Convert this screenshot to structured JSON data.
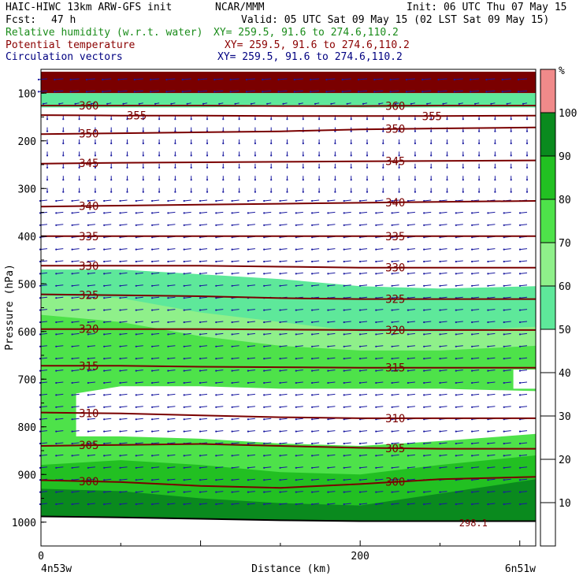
{
  "header": {
    "title_left": "HAIC-HIWC 13km ARW-GFS init",
    "org": "NCAR/MMM",
    "init": "Init: 06 UTC Thu 07 May 15",
    "fcst_label": "Fcst:",
    "fcst_value": "47 h",
    "valid": "Valid: 05 UTC Sat 09 May 15 (02 LST Sat 09 May 15)",
    "fields": [
      {
        "name": "Relative humidity (w.r.t. water)",
        "xy": "XY= 259.5, 91.6 to 274.6,110.2",
        "color": "#1a8c1a"
      },
      {
        "name": "Potential temperature",
        "xy": "XY= 259.5, 91.6 to 274.6,110.2",
        "color": "#8b0000"
      },
      {
        "name": "Circulation vectors",
        "xy": "XY= 259.5, 91.6 to 274.6,110.2",
        "color": "#000080"
      }
    ]
  },
  "chart_data": {
    "type": "heatmap",
    "ylabel": "Pressure (hPa)",
    "xlabel": "Distance (km)",
    "x_ticks": [
      0,
      200
    ],
    "x_endpoints": [
      "4n53w",
      "6n51w"
    ],
    "xlim": [
      0,
      310
    ],
    "ylim": [
      1050,
      50
    ],
    "y_ticks": [
      100,
      200,
      300,
      400,
      500,
      600,
      700,
      800,
      900,
      1000
    ],
    "colorbar": {
      "unit": "%",
      "ticks": [
        10,
        20,
        30,
        40,
        50,
        60,
        70,
        80,
        90,
        100
      ],
      "bins": [
        {
          "from": 0,
          "to": 50,
          "color": "#ffffff"
        },
        {
          "from": 50,
          "to": 60,
          "color": "#5ee89a"
        },
        {
          "from": 60,
          "to": 70,
          "color": "#8ff08a"
        },
        {
          "from": 70,
          "to": 80,
          "color": "#4ee24a"
        },
        {
          "from": 80,
          "to": 90,
          "color": "#22c022"
        },
        {
          "from": 90,
          "to": 100,
          "color": "#0a8a1e"
        },
        {
          "from": 100,
          "to": 110,
          "color": "#f08a8a"
        }
      ]
    },
    "rh_bands": [
      {
        "color": "#7a0000",
        "top": [
          55,
          55,
          55,
          55,
          55,
          55,
          55
        ],
        "bottom": [
          100,
          100,
          100,
          100,
          100,
          100,
          100
        ]
      },
      {
        "color": "#5ee89a",
        "top": [
          100,
          100,
          100,
          100,
          100,
          100,
          100
        ],
        "bottom": [
          130,
          130,
          130,
          128,
          130,
          130,
          130
        ]
      },
      {
        "color": "#5ee89a",
        "top": [
          470,
          470,
          480,
          490,
          505,
          510,
          505
        ],
        "bottom": [
          1050,
          1050,
          1050,
          1050,
          1050,
          1050,
          1050
        ]
      },
      {
        "color": "#8ff08a",
        "top": [
          525,
          530,
          560,
          580,
          600,
          600,
          590
        ],
        "bottom": [
          1050,
          1050,
          1050,
          1050,
          1050,
          1050,
          1050
        ]
      },
      {
        "color": "#4ee24a",
        "top": [
          565,
          580,
          610,
          630,
          640,
          640,
          630
        ],
        "bottom": [
          1050,
          1050,
          1050,
          1050,
          1050,
          1050,
          1050
        ]
      },
      {
        "color": "#22c022",
        "top": [
          880,
          870,
          880,
          895,
          900,
          880,
          860
        ],
        "bottom": [
          1050,
          1050,
          1050,
          1050,
          1050,
          1050,
          1050
        ]
      },
      {
        "color": "#0a8a1e",
        "top": [
          930,
          935,
          950,
          960,
          965,
          940,
          910
        ],
        "bottom": [
          1050,
          1050,
          1050,
          1050,
          1050,
          1050,
          1050
        ]
      }
    ],
    "dry_pockets": [
      {
        "color": "#ffffff",
        "top": [
          730,
          715,
          715,
          720,
          720,
          720,
          725
        ],
        "bottom": [
          820,
          820,
          825,
          835,
          840,
          830,
          815
        ],
        "x_from": 22,
        "x_to": 310
      },
      {
        "color": "#ffffff",
        "top": [
          680,
          680
        ],
        "bottom": [
          720,
          720
        ],
        "x_from": 296,
        "x_to": 310
      }
    ],
    "x_positions": [
      0,
      50,
      100,
      150,
      200,
      250,
      310
    ],
    "theta_contours": [
      {
        "value": "360",
        "p": [
          126,
          126,
          126,
          127,
          127,
          126,
          126
        ],
        "label_x": [
          30,
          222
        ]
      },
      {
        "value": "355",
        "p": [
          146,
          147,
          147,
          148,
          148,
          148,
          147
        ],
        "label_x": [
          60,
          245
        ]
      },
      {
        "value": "350",
        "p": [
          186,
          184,
          182,
          180,
          176,
          174,
          172
        ],
        "label_x": [
          30,
          222
        ]
      },
      {
        "value": "345",
        "p": [
          248,
          246,
          245,
          244,
          243,
          242,
          241
        ],
        "label_x": [
          30,
          222
        ]
      },
      {
        "value": "340",
        "p": [
          338,
          336,
          334,
          332,
          330,
          328,
          326
        ],
        "label_x": [
          30,
          222
        ]
      },
      {
        "value": "335",
        "p": [
          400,
          400,
          400,
          400,
          400,
          400,
          400
        ],
        "label_x": [
          30,
          222
        ]
      },
      {
        "value": "330",
        "p": [
          462,
          462,
          462,
          464,
          466,
          466,
          466
        ],
        "label_x": [
          30,
          222
        ]
      },
      {
        "value": "325",
        "p": [
          522,
          524,
          526,
          530,
          532,
          532,
          532
        ],
        "label_x": [
          30,
          222
        ]
      },
      {
        "value": "320",
        "p": [
          595,
          595,
          595,
          596,
          597,
          597,
          597
        ],
        "label_x": [
          30,
          222
        ]
      },
      {
        "value": "315",
        "p": [
          672,
          672,
          674,
          675,
          676,
          676,
          676
        ],
        "label_x": [
          30,
          222
        ]
      },
      {
        "value": "310",
        "p": [
          770,
          772,
          776,
          780,
          782,
          782,
          782
        ],
        "label_x": [
          30,
          222
        ]
      },
      {
        "value": "305",
        "p": [
          840,
          838,
          836,
          840,
          844,
          846,
          846
        ],
        "label_x": [
          30,
          222
        ]
      },
      {
        "value": "300",
        "p": [
          912,
          916,
          924,
          928,
          920,
          910,
          905
        ],
        "label_x": [
          30,
          222
        ]
      }
    ],
    "theta_small_label": {
      "value": "298.1",
      "x": 262,
      "p": 1000
    },
    "terrain": {
      "p": [
        988,
        990,
        993,
        996,
        998,
        998,
        998
      ]
    }
  }
}
